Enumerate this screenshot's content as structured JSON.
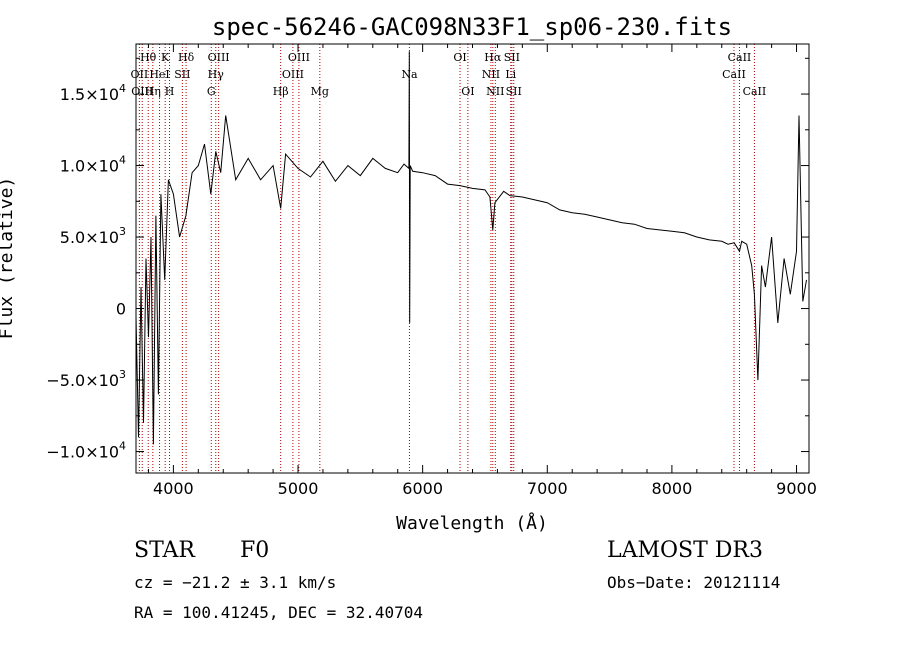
{
  "chart_data": {
    "type": "line",
    "title": "spec-56246-GAC098N33F1_sp06-230.fits",
    "xlabel": "Wavelength (Å)",
    "ylabel": "Flux (relative)",
    "xlim": [
      3700,
      9100
    ],
    "ylim": [
      -11500,
      18500
    ],
    "x_ticks": [
      4000,
      5000,
      6000,
      7000,
      8000,
      9000
    ],
    "x_tick_labels": [
      "4000",
      "5000",
      "6000",
      "7000",
      "8000",
      "9000"
    ],
    "y_ticks": [
      -10000,
      -5000,
      0,
      5000,
      10000,
      15000
    ],
    "y_tick_labels": [
      {
        "mant": "−1.0×10",
        "exp": "4"
      },
      {
        "mant": "−5.0×10",
        "exp": "3"
      },
      {
        "mant": "0",
        "exp": ""
      },
      {
        "mant": "5.0×10",
        "exp": "3"
      },
      {
        "mant": "1.0×10",
        "exp": "4"
      },
      {
        "mant": "1.5×10",
        "exp": "4"
      }
    ],
    "series": [
      {
        "name": "spectrum",
        "x": [
          3700,
          3720,
          3740,
          3760,
          3780,
          3800,
          3820,
          3840,
          3860,
          3880,
          3900,
          3930,
          3960,
          4000,
          4050,
          4100,
          4150,
          4200,
          4250,
          4300,
          4340,
          4380,
          4420,
          4500,
          4600,
          4700,
          4800,
          4861,
          4900,
          5000,
          5100,
          5200,
          5300,
          5400,
          5500,
          5600,
          5700,
          5800,
          5850,
          5890,
          5893,
          5896,
          5900,
          5920,
          6000,
          6100,
          6200,
          6300,
          6400,
          6500,
          6540,
          6563,
          6580,
          6650,
          6700,
          6800,
          6900,
          7000,
          7100,
          7200,
          7300,
          7400,
          7500,
          7600,
          7700,
          7800,
          7900,
          8000,
          8100,
          8200,
          8300,
          8400,
          8450,
          8500,
          8542,
          8560,
          8600,
          8640,
          8662,
          8690,
          8720,
          8750,
          8800,
          8850,
          8900,
          8950,
          9000,
          9020,
          9050,
          9080
        ],
        "y": [
          -500,
          -9000,
          1500,
          -8000,
          3500,
          -2000,
          5000,
          -9500,
          6500,
          -6000,
          8000,
          2000,
          9000,
          8000,
          5000,
          6500,
          9500,
          10000,
          11500,
          8000,
          11000,
          9500,
          13500,
          9000,
          10500,
          9000,
          10000,
          7000,
          10800,
          9800,
          9200,
          10300,
          8900,
          10000,
          9300,
          10500,
          9800,
          9500,
          10100,
          9800,
          18000,
          -1000,
          10000,
          9600,
          9500,
          9300,
          8700,
          8600,
          8400,
          8300,
          7800,
          5500,
          7400,
          8200,
          7900,
          7800,
          7600,
          7400,
          6900,
          6700,
          6600,
          6400,
          6200,
          6000,
          5900,
          5600,
          5500,
          5400,
          5300,
          5000,
          4800,
          4700,
          4500,
          4600,
          4000,
          4700,
          4500,
          3000,
          1000,
          -5000,
          3000,
          1500,
          5000,
          -1000,
          3500,
          1000,
          4000,
          13500,
          500,
          2000
        ]
      }
    ],
    "lines": [
      {
        "w": 3727,
        "top": "OII",
        "mid": "",
        "bot": ""
      },
      {
        "w": 3750,
        "top": "OIII",
        "mid": "",
        "bot": ""
      },
      {
        "w": 3798,
        "top": "Hθ",
        "mid": "",
        "bot": ""
      },
      {
        "w": 3835,
        "top": "Hη",
        "mid": "",
        "bot": ""
      },
      {
        "w": 3889,
        "top": "HeI",
        "mid": "",
        "bot": ""
      },
      {
        "w": 3934,
        "top": "K",
        "mid": "",
        "bot": ""
      },
      {
        "w": 3969,
        "top": "H",
        "mid": "",
        "bot": ""
      },
      {
        "w": 4072,
        "top": "SII",
        "mid": "",
        "bot": ""
      },
      {
        "w": 4102,
        "top": "Hδ",
        "mid": "",
        "bot": ""
      },
      {
        "w": 4304,
        "top": "G",
        "mid": "",
        "bot": ""
      },
      {
        "w": 4340,
        "top": "Hγ",
        "mid": "",
        "bot": ""
      },
      {
        "w": 4363,
        "top": "OIII",
        "mid": "",
        "bot": ""
      },
      {
        "w": 4861,
        "top": "Hβ",
        "mid": "",
        "bot": ""
      },
      {
        "w": 4959,
        "top": "OIII",
        "mid": "",
        "bot": ""
      },
      {
        "w": 5007,
        "top": "OIII",
        "mid": "",
        "bot": ""
      },
      {
        "w": 5175,
        "top": "Mg",
        "mid": "",
        "bot": ""
      },
      {
        "w": 5894,
        "top": "Na",
        "mid": "",
        "bot": ""
      },
      {
        "w": 6300,
        "top": "OI",
        "mid": "",
        "bot": ""
      },
      {
        "w": 6363,
        "top": "OI",
        "mid": "",
        "bot": ""
      },
      {
        "w": 6548,
        "top": "NII",
        "mid": "",
        "bot": ""
      },
      {
        "w": 6563,
        "top": "Hα",
        "mid": "",
        "bot": ""
      },
      {
        "w": 6583,
        "top": "NII",
        "mid": "",
        "bot": ""
      },
      {
        "w": 6707,
        "top": "Li",
        "mid": "",
        "bot": ""
      },
      {
        "w": 6716,
        "top": "SII",
        "mid": "",
        "bot": ""
      },
      {
        "w": 6731,
        "top": "SII",
        "mid": "",
        "bot": ""
      },
      {
        "w": 8498,
        "top": "CaII",
        "mid": "",
        "bot": ""
      },
      {
        "w": 8542,
        "top": "CaII",
        "mid": "",
        "bot": ""
      },
      {
        "w": 8662,
        "top": "CaII",
        "mid": "",
        "bot": ""
      }
    ],
    "line_labels": [
      {
        "text": "Hθ",
        "w": 3798,
        "row": 0
      },
      {
        "text": "K",
        "w": 3934,
        "row": 0
      },
      {
        "text": "Hδ",
        "w": 4102,
        "row": 0
      },
      {
        "text": "OIII",
        "w": 4363,
        "row": 0
      },
      {
        "text": "OIII",
        "w": 5007,
        "row": 0
      },
      {
        "text": "Na",
        "w": 5894,
        "row": 1
      },
      {
        "text": "OI",
        "w": 6300,
        "row": 0
      },
      {
        "text": "Hα",
        "w": 6563,
        "row": 0
      },
      {
        "text": "SII",
        "w": 6716,
        "row": 0
      },
      {
        "text": "CaII",
        "w": 8542,
        "row": 0
      },
      {
        "text": "OII",
        "w": 3727,
        "row": 1
      },
      {
        "text": "HeI",
        "w": 3889,
        "row": 1
      },
      {
        "text": "SII",
        "w": 4072,
        "row": 1
      },
      {
        "text": "Hγ",
        "w": 4340,
        "row": 1
      },
      {
        "text": "OIII",
        "w": 4959,
        "row": 1
      },
      {
        "text": "NII",
        "w": 6548,
        "row": 1
      },
      {
        "text": "Li",
        "w": 6707,
        "row": 1
      },
      {
        "text": "CaII",
        "w": 8498,
        "row": 1
      },
      {
        "text": "OIII",
        "w": 3750,
        "row": 2
      },
      {
        "text": "Hη",
        "w": 3835,
        "row": 2
      },
      {
        "text": "H",
        "w": 3969,
        "row": 2
      },
      {
        "text": "G",
        "w": 4304,
        "row": 2
      },
      {
        "text": "Hβ",
        "w": 4861,
        "row": 2
      },
      {
        "text": "Mg",
        "w": 5175,
        "row": 2
      },
      {
        "text": "OI",
        "w": 6363,
        "row": 2
      },
      {
        "text": "NII",
        "w": 6583,
        "row": 2
      },
      {
        "text": "SII",
        "w": 6731,
        "row": 2
      },
      {
        "text": "CaII",
        "w": 8662,
        "row": 2
      }
    ]
  },
  "info": {
    "class_label": "STAR",
    "subclass": "F0",
    "survey": "LAMOST DR3",
    "cz": "cz = −21.2 ± 3.1 km/s",
    "obs_date": "Obs−Date: 20121114",
    "radec": "RA = 100.41245, DEC =  32.40704"
  },
  "colors": {
    "line_marker": "#b00000",
    "spectrum": "#000000"
  }
}
